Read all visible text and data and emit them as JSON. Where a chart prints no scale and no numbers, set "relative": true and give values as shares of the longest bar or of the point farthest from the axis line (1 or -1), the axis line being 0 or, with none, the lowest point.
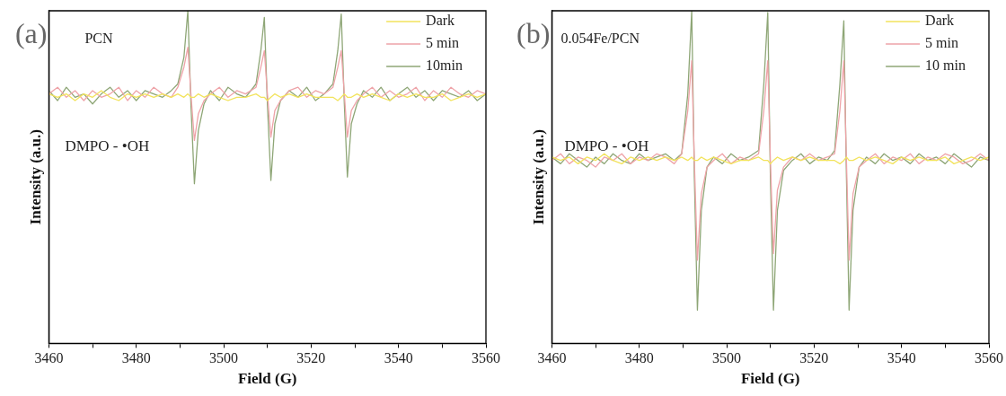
{
  "chart_data": [
    {
      "type": "line",
      "relative": true,
      "xlabel": "Field (G)",
      "ylabel": "Intensity (a.u.)",
      "annotations": [
        "(a)",
        "PCN",
        "DMPO - •OH"
      ],
      "legend": "top right",
      "grid": false,
      "marker": "none",
      "line_style": "solid",
      "xlim": [
        3460,
        3560
      ],
      "xticks": [
        3460,
        {
          "value": 3470,
          "label": null
        },
        3480,
        {
          "value": 3490,
          "label": null
        },
        3500,
        {
          "value": 3510,
          "label": null
        },
        3520,
        {
          "value": 3530,
          "label": null
        },
        3540,
        {
          "value": 3550,
          "label": null
        },
        3560
      ],
      "x": [
        3460,
        3462,
        3464,
        3466,
        3468,
        3470,
        3472,
        3474,
        3476,
        3478,
        3480,
        3482,
        3484,
        3486,
        3488,
        3489.5,
        3490.9,
        3491.8,
        3492.5,
        3493.3,
        3494.2,
        3495.5,
        3497,
        3499,
        3501,
        3503,
        3505,
        3507.4,
        3508.5,
        3509.3,
        3510,
        3510.8,
        3511.7,
        3513,
        3515,
        3517,
        3519,
        3521,
        3523,
        3525,
        3526.1,
        3526.9,
        3527.6,
        3528.3,
        3529.2,
        3530.5,
        3532,
        3534,
        3536,
        3538,
        3540,
        3542,
        3544,
        3546,
        3548,
        3550,
        3552,
        3554,
        3556,
        3558,
        3560
      ],
      "series": [
        {
          "name": "Dark",
          "color": "#f2e35c",
          "values": [
            0.75,
            0.74,
            0.75,
            0.73,
            0.75,
            0.74,
            0.76,
            0.74,
            0.73,
            0.75,
            0.74,
            0.75,
            0.74,
            0.75,
            0.74,
            0.75,
            0.74,
            0.75,
            0.74,
            0.74,
            0.75,
            0.74,
            0.75,
            0.74,
            0.73,
            0.74,
            0.74,
            0.75,
            0.74,
            0.74,
            0.73,
            0.74,
            0.75,
            0.74,
            0.75,
            0.74,
            0.75,
            0.74,
            0.74,
            0.74,
            0.73,
            0.74,
            0.75,
            0.74,
            0.74,
            0.75,
            0.74,
            0.75,
            0.74,
            0.73,
            0.75,
            0.74,
            0.75,
            0.74,
            0.74,
            0.75,
            0.73,
            0.74,
            0.75,
            0.74,
            0.75
          ]
        },
        {
          "name": "5 min",
          "color": "#eea3a8",
          "values": [
            0.75,
            0.77,
            0.74,
            0.76,
            0.73,
            0.76,
            0.74,
            0.75,
            0.77,
            0.73,
            0.76,
            0.74,
            0.77,
            0.75,
            0.74,
            0.77,
            0.83,
            0.89,
            0.75,
            0.61,
            0.69,
            0.73,
            0.75,
            0.77,
            0.74,
            0.76,
            0.75,
            0.77,
            0.83,
            0.88,
            0.75,
            0.62,
            0.7,
            0.73,
            0.76,
            0.77,
            0.74,
            0.76,
            0.75,
            0.77,
            0.83,
            0.88,
            0.75,
            0.62,
            0.7,
            0.73,
            0.75,
            0.77,
            0.74,
            0.76,
            0.74,
            0.75,
            0.77,
            0.73,
            0.76,
            0.74,
            0.77,
            0.75,
            0.74,
            0.76,
            0.75
          ]
        },
        {
          "name": "10min",
          "color": "#8ea676",
          "values": [
            0.76,
            0.73,
            0.77,
            0.74,
            0.75,
            0.72,
            0.75,
            0.77,
            0.74,
            0.76,
            0.73,
            0.76,
            0.75,
            0.74,
            0.76,
            0.78,
            0.86,
            1.0,
            0.72,
            0.48,
            0.64,
            0.72,
            0.76,
            0.73,
            0.77,
            0.75,
            0.74,
            0.78,
            0.88,
            0.98,
            0.72,
            0.49,
            0.66,
            0.73,
            0.76,
            0.74,
            0.77,
            0.73,
            0.75,
            0.78,
            0.88,
            0.99,
            0.72,
            0.5,
            0.66,
            0.72,
            0.76,
            0.74,
            0.77,
            0.73,
            0.75,
            0.77,
            0.74,
            0.76,
            0.73,
            0.76,
            0.75,
            0.74,
            0.76,
            0.73,
            0.75
          ]
        }
      ]
    },
    {
      "type": "line",
      "relative": true,
      "xlabel": "Field (G)",
      "ylabel": "Intensity (a.u.)",
      "annotations": [
        "(b)",
        "0.054Fe/PCN",
        "DMPO - •OH"
      ],
      "legend": "top right",
      "grid": false,
      "marker": "none",
      "line_style": "solid",
      "xlim": [
        3460,
        3560
      ],
      "xticks": [
        3460,
        {
          "value": 3470,
          "label": null
        },
        3480,
        {
          "value": 3490,
          "label": null
        },
        3500,
        {
          "value": 3510,
          "label": null
        },
        3520,
        {
          "value": 3530,
          "label": null
        },
        3540,
        {
          "value": 3550,
          "label": null
        },
        3560
      ],
      "x": [
        3460,
        3462,
        3464,
        3466,
        3468,
        3470,
        3472,
        3474,
        3476,
        3478,
        3480,
        3482,
        3484,
        3486,
        3488,
        3489.7,
        3491.1,
        3492,
        3492.6,
        3493.3,
        3494.2,
        3495.5,
        3497,
        3499,
        3501,
        3503,
        3505,
        3507.3,
        3508.5,
        3509.4,
        3510,
        3510.7,
        3511.6,
        3513,
        3515,
        3517,
        3519,
        3521,
        3523,
        3524.7,
        3525.9,
        3526.8,
        3527.4,
        3528,
        3528.9,
        3530.3,
        3532,
        3534,
        3536,
        3538,
        3540,
        3542,
        3544,
        3546,
        3548,
        3550,
        3552,
        3554,
        3556,
        3558,
        3560
      ],
      "series": [
        {
          "name": "Dark",
          "color": "#f2e35c",
          "values": [
            0.56,
            0.55,
            0.56,
            0.54,
            0.56,
            0.55,
            0.57,
            0.55,
            0.54,
            0.56,
            0.55,
            0.56,
            0.55,
            0.56,
            0.55,
            0.56,
            0.55,
            0.56,
            0.55,
            0.55,
            0.56,
            0.55,
            0.56,
            0.55,
            0.54,
            0.55,
            0.55,
            0.56,
            0.55,
            0.55,
            0.54,
            0.55,
            0.56,
            0.55,
            0.56,
            0.55,
            0.56,
            0.55,
            0.55,
            0.55,
            0.54,
            0.55,
            0.56,
            0.55,
            0.55,
            0.56,
            0.55,
            0.56,
            0.55,
            0.54,
            0.56,
            0.55,
            0.56,
            0.55,
            0.55,
            0.56,
            0.54,
            0.55,
            0.56,
            0.55,
            0.56
          ]
        },
        {
          "name": "5 min",
          "color": "#eea3a8",
          "values": [
            0.55,
            0.57,
            0.54,
            0.56,
            0.55,
            0.53,
            0.56,
            0.55,
            0.57,
            0.54,
            0.56,
            0.55,
            0.57,
            0.56,
            0.54,
            0.57,
            0.7,
            0.85,
            0.55,
            0.25,
            0.45,
            0.53,
            0.55,
            0.57,
            0.54,
            0.56,
            0.55,
            0.57,
            0.7,
            0.85,
            0.55,
            0.27,
            0.46,
            0.53,
            0.56,
            0.55,
            0.57,
            0.55,
            0.56,
            0.57,
            0.7,
            0.85,
            0.55,
            0.25,
            0.45,
            0.53,
            0.55,
            0.57,
            0.54,
            0.56,
            0.55,
            0.57,
            0.54,
            0.56,
            0.55,
            0.57,
            0.56,
            0.54,
            0.55,
            0.57,
            0.55
          ]
        },
        {
          "name": "10 min",
          "color": "#8ea676",
          "values": [
            0.56,
            0.54,
            0.57,
            0.55,
            0.53,
            0.56,
            0.54,
            0.57,
            0.55,
            0.54,
            0.57,
            0.55,
            0.56,
            0.57,
            0.55,
            0.57,
            0.75,
            1.0,
            0.5,
            0.1,
            0.4,
            0.53,
            0.56,
            0.54,
            0.57,
            0.55,
            0.56,
            0.58,
            0.78,
            0.995,
            0.5,
            0.1,
            0.4,
            0.52,
            0.55,
            0.57,
            0.54,
            0.56,
            0.55,
            0.58,
            0.78,
            0.97,
            0.5,
            0.1,
            0.4,
            0.53,
            0.56,
            0.54,
            0.57,
            0.55,
            0.56,
            0.54,
            0.57,
            0.55,
            0.56,
            0.54,
            0.57,
            0.55,
            0.53,
            0.56,
            0.55
          ]
        }
      ]
    }
  ]
}
